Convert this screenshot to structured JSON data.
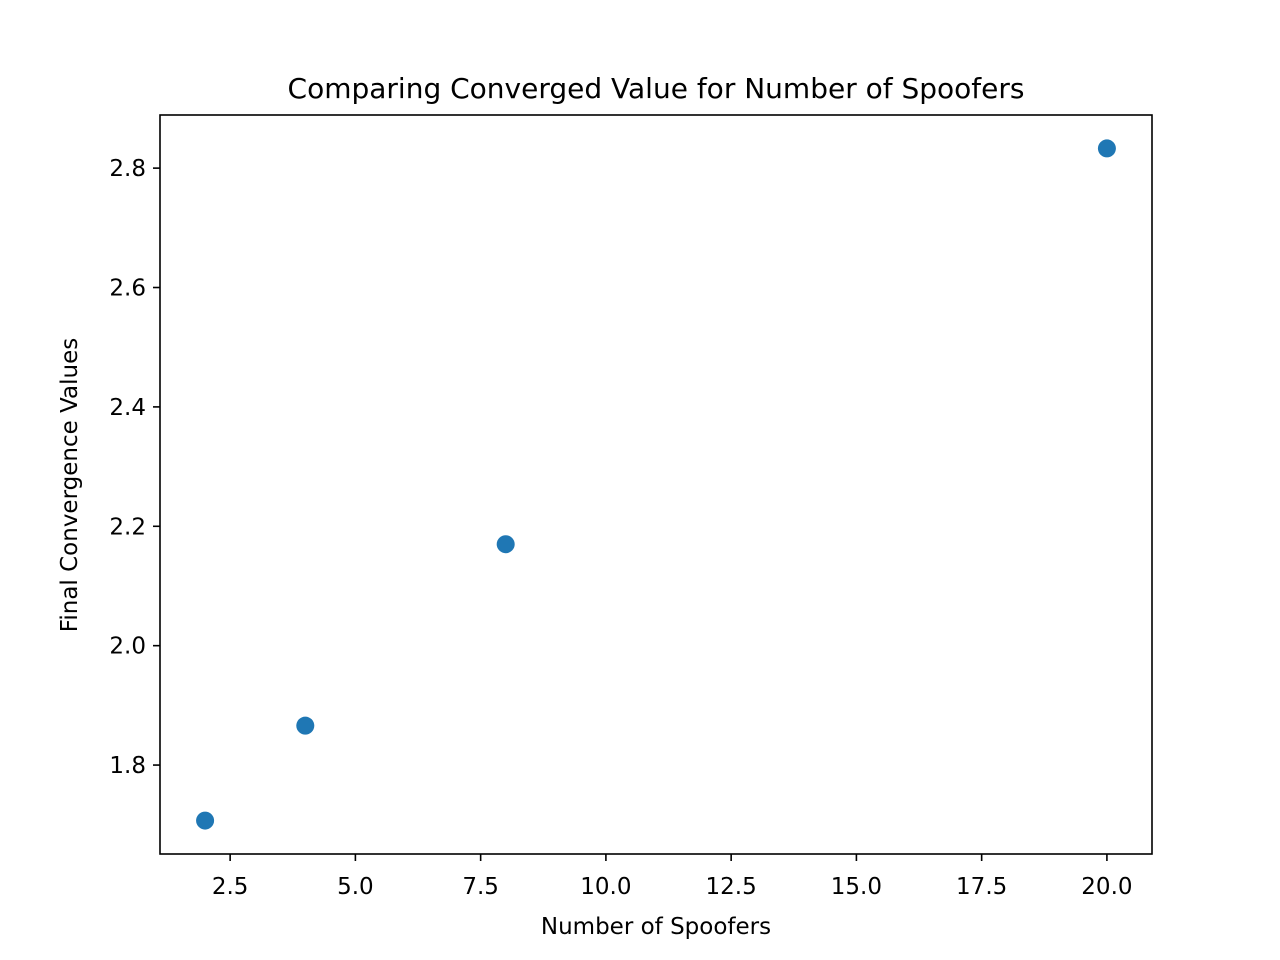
{
  "chart_data": {
    "type": "scatter",
    "title": "Comparing Converged Value for Number of Spoofers",
    "xlabel": "Number of Spoofers",
    "ylabel": "Final Convergence Values",
    "x": [
      2,
      4,
      8,
      20
    ],
    "y": [
      1.707,
      1.866,
      2.17,
      2.833
    ],
    "xlim": [
      1.1,
      20.9
    ],
    "ylim": [
      1.651,
      2.889
    ],
    "xticks": [
      2.5,
      5.0,
      7.5,
      10.0,
      12.5,
      15.0,
      17.5,
      20.0
    ],
    "xtick_labels": [
      "2.5",
      "5.0",
      "7.5",
      "10.0",
      "12.5",
      "15.0",
      "17.5",
      "20.0"
    ],
    "yticks": [
      1.8,
      2.0,
      2.2,
      2.4,
      2.6,
      2.8
    ],
    "ytick_labels": [
      "1.8",
      "2.0",
      "2.2",
      "2.4",
      "2.6",
      "2.8"
    ],
    "grid": false,
    "marker_color": "#1f77b4"
  }
}
